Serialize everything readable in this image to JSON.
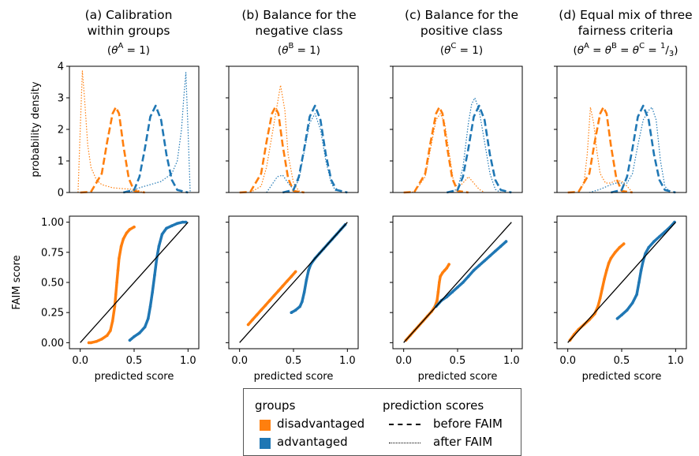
{
  "colors": {
    "disadvantaged": "#ff7f0e",
    "advantaged": "#1f77b4",
    "identity": "#000000"
  },
  "panel_titles": [
    {
      "line1": "(a) Calibration",
      "line2": "within groups",
      "line3": "(θA = 1)"
    },
    {
      "line1": "(b) Balance for the",
      "line2": "negative class",
      "line3": "(θB = 1)"
    },
    {
      "line1": "(c) Balance for the",
      "line2": "positive class",
      "line3": "(θC = 1)"
    },
    {
      "line1": "(d) Equal mix of three",
      "line2": "fairness criteria",
      "line3": "(θA = θB = θC = 1/3)"
    }
  ],
  "axes": {
    "top_ylabel": "probability density",
    "bottom_ylabel": "FAIM score",
    "xlabel": "predicted score",
    "top_yticks": [
      "0",
      "1",
      "2",
      "3",
      "4"
    ],
    "bottom_yticks": [
      "0.00",
      "0.25",
      "0.50",
      "0.75",
      "1.00"
    ],
    "xticks": [
      "0.0",
      "0.5",
      "1.0"
    ]
  },
  "legend": {
    "groups_title": "groups",
    "groups": [
      "disadvantaged",
      "advantaged"
    ],
    "scores_title": "prediction scores",
    "scores": [
      "before FAIM",
      "after FAIM"
    ]
  },
  "chart_data": [
    {
      "type": "line",
      "title": "(a) Calibration within groups (θA = 1)",
      "ylabel": "probability density",
      "xlim": [
        -0.1,
        1.1
      ],
      "ylim": [
        0,
        4
      ],
      "series": [
        {
          "name": "disadvantaged",
          "style": "before FAIM",
          "x": [
            0.0,
            0.1,
            0.2,
            0.25,
            0.3,
            0.33,
            0.36,
            0.4,
            0.45,
            0.5,
            0.6
          ],
          "y": [
            0.0,
            0.02,
            0.6,
            1.6,
            2.5,
            2.7,
            2.5,
            1.5,
            0.45,
            0.05,
            0.0
          ]
        },
        {
          "name": "disadvantaged",
          "style": "after FAIM",
          "x": [
            -0.02,
            0.0,
            0.02,
            0.04,
            0.07,
            0.1,
            0.15,
            0.2,
            0.3,
            0.4,
            0.5,
            0.55,
            0.58
          ],
          "y": [
            0.0,
            2.0,
            3.85,
            3.0,
            1.5,
            0.8,
            0.4,
            0.25,
            0.15,
            0.12,
            0.1,
            0.05,
            0.0
          ]
        },
        {
          "name": "advantaged",
          "style": "before FAIM",
          "x": [
            0.4,
            0.5,
            0.55,
            0.6,
            0.65,
            0.7,
            0.75,
            0.8,
            0.85,
            0.9,
            1.0
          ],
          "y": [
            0.0,
            0.08,
            0.5,
            1.4,
            2.4,
            2.75,
            2.3,
            1.2,
            0.4,
            0.08,
            0.0
          ]
        },
        {
          "name": "advantaged",
          "style": "after FAIM",
          "x": [
            0.45,
            0.55,
            0.65,
            0.75,
            0.85,
            0.9,
            0.94,
            0.96,
            0.98,
            1.0,
            1.02
          ],
          "y": [
            0.0,
            0.15,
            0.25,
            0.35,
            0.6,
            1.0,
            2.0,
            3.0,
            3.8,
            2.0,
            0.0
          ]
        }
      ]
    },
    {
      "type": "line",
      "title": "(b) Balance for the negative class (θB = 1)",
      "xlim": [
        -0.1,
        1.1
      ],
      "ylim": [
        0,
        4
      ],
      "series": [
        {
          "name": "disadvantaged",
          "style": "before FAIM",
          "x": [
            0.0,
            0.1,
            0.2,
            0.25,
            0.3,
            0.33,
            0.36,
            0.4,
            0.45,
            0.5,
            0.6
          ],
          "y": [
            0.0,
            0.02,
            0.6,
            1.6,
            2.5,
            2.7,
            2.5,
            1.5,
            0.45,
            0.05,
            0.0
          ]
        },
        {
          "name": "disadvantaged",
          "style": "after FAIM",
          "x": [
            0.1,
            0.2,
            0.25,
            0.3,
            0.35,
            0.38,
            0.42,
            0.45,
            0.5,
            0.55,
            0.6
          ],
          "y": [
            0.0,
            0.2,
            0.8,
            1.8,
            2.8,
            3.4,
            2.6,
            1.2,
            0.3,
            0.05,
            0.0
          ]
        },
        {
          "name": "advantaged",
          "style": "before FAIM",
          "x": [
            0.4,
            0.5,
            0.55,
            0.6,
            0.65,
            0.7,
            0.75,
            0.8,
            0.85,
            0.9,
            1.0
          ],
          "y": [
            0.0,
            0.08,
            0.5,
            1.4,
            2.4,
            2.75,
            2.3,
            1.2,
            0.4,
            0.08,
            0.0
          ]
        },
        {
          "name": "advantaged",
          "style": "after FAIM",
          "x": [
            0.25,
            0.3,
            0.35,
            0.4,
            0.45,
            0.5,
            0.55,
            0.6,
            0.65,
            0.7,
            0.75,
            0.8,
            0.85,
            0.9
          ],
          "y": [
            0.0,
            0.25,
            0.5,
            0.55,
            0.3,
            0.1,
            0.4,
            1.3,
            2.2,
            2.5,
            2.0,
            1.0,
            0.3,
            0.0
          ]
        }
      ]
    },
    {
      "type": "line",
      "title": "(c) Balance for the positive class (θC = 1)",
      "xlim": [
        -0.1,
        1.1
      ],
      "ylim": [
        0,
        4
      ],
      "series": [
        {
          "name": "disadvantaged",
          "style": "before FAIM",
          "x": [
            0.0,
            0.1,
            0.2,
            0.25,
            0.3,
            0.33,
            0.36,
            0.4,
            0.45,
            0.5,
            0.6
          ],
          "y": [
            0.0,
            0.02,
            0.6,
            1.6,
            2.5,
            2.7,
            2.5,
            1.5,
            0.45,
            0.05,
            0.0
          ]
        },
        {
          "name": "disadvantaged",
          "style": "after FAIM",
          "x": [
            0.0,
            0.1,
            0.2,
            0.25,
            0.3,
            0.34,
            0.38,
            0.42,
            0.46,
            0.5,
            0.55,
            0.6,
            0.65,
            0.7,
            0.75
          ],
          "y": [
            0.0,
            0.02,
            0.5,
            1.4,
            2.3,
            2.5,
            2.2,
            1.3,
            0.4,
            0.15,
            0.3,
            0.5,
            0.3,
            0.1,
            0.0
          ]
        },
        {
          "name": "advantaged",
          "style": "before FAIM",
          "x": [
            0.4,
            0.5,
            0.55,
            0.6,
            0.65,
            0.7,
            0.75,
            0.8,
            0.85,
            0.9,
            1.0
          ],
          "y": [
            0.0,
            0.08,
            0.5,
            1.4,
            2.4,
            2.75,
            2.3,
            1.2,
            0.4,
            0.08,
            0.0
          ]
        },
        {
          "name": "advantaged",
          "style": "after FAIM",
          "x": [
            0.4,
            0.5,
            0.55,
            0.6,
            0.63,
            0.66,
            0.7,
            0.75,
            0.8,
            0.85,
            0.9
          ],
          "y": [
            0.0,
            0.1,
            0.8,
            2.2,
            2.8,
            3.0,
            2.6,
            1.6,
            0.6,
            0.1,
            0.0
          ]
        }
      ]
    },
    {
      "type": "line",
      "title": "(d) Equal mix of three fairness criteria (θA = θB = θC = 1/3)",
      "xlim": [
        -0.1,
        1.1
      ],
      "ylim": [
        0,
        4
      ],
      "series": [
        {
          "name": "disadvantaged",
          "style": "before FAIM",
          "x": [
            0.0,
            0.1,
            0.2,
            0.25,
            0.3,
            0.33,
            0.36,
            0.4,
            0.45,
            0.5,
            0.6
          ],
          "y": [
            0.0,
            0.02,
            0.6,
            1.6,
            2.5,
            2.7,
            2.5,
            1.5,
            0.45,
            0.05,
            0.0
          ]
        },
        {
          "name": "disadvantaged",
          "style": "after FAIM",
          "x": [
            0.1,
            0.15,
            0.18,
            0.21,
            0.24,
            0.27,
            0.3,
            0.35,
            0.4,
            0.45,
            0.5,
            0.55,
            0.6
          ],
          "y": [
            0.0,
            0.3,
            1.2,
            2.7,
            2.2,
            1.3,
            0.6,
            0.3,
            0.3,
            0.4,
            0.35,
            0.2,
            0.0
          ]
        },
        {
          "name": "advantaged",
          "style": "before FAIM",
          "x": [
            0.4,
            0.5,
            0.55,
            0.6,
            0.65,
            0.7,
            0.75,
            0.8,
            0.85,
            0.9,
            1.0
          ],
          "y": [
            0.0,
            0.08,
            0.5,
            1.4,
            2.4,
            2.75,
            2.3,
            1.2,
            0.4,
            0.08,
            0.0
          ]
        },
        {
          "name": "advantaged",
          "style": "after FAIM",
          "x": [
            0.2,
            0.3,
            0.4,
            0.45,
            0.5,
            0.55,
            0.6,
            0.65,
            0.7,
            0.75,
            0.78,
            0.82,
            0.86,
            0.9,
            0.95
          ],
          "y": [
            0.0,
            0.1,
            0.25,
            0.3,
            0.3,
            0.3,
            0.6,
            1.5,
            2.3,
            2.6,
            2.7,
            2.3,
            1.0,
            0.2,
            0.0
          ]
        }
      ]
    },
    {
      "type": "scatter",
      "ylabel": "FAIM score",
      "xlabel": "predicted score",
      "xlim": [
        -0.1,
        1.1
      ],
      "ylim": [
        -0.05,
        1.05
      ],
      "identity_line": [
        [
          0,
          0
        ],
        [
          1,
          1
        ]
      ],
      "series": [
        {
          "name": "disadvantaged",
          "x": [
            0.08,
            0.1,
            0.15,
            0.2,
            0.25,
            0.28,
            0.3,
            0.32,
            0.33,
            0.34,
            0.35,
            0.36,
            0.38,
            0.4,
            0.43,
            0.46,
            0.5
          ],
          "y": [
            0.0,
            0.0,
            0.01,
            0.03,
            0.06,
            0.1,
            0.18,
            0.3,
            0.4,
            0.5,
            0.6,
            0.7,
            0.8,
            0.86,
            0.91,
            0.94,
            0.96
          ]
        },
        {
          "name": "advantaged",
          "x": [
            0.46,
            0.5,
            0.55,
            0.6,
            0.63,
            0.65,
            0.67,
            0.69,
            0.71,
            0.73,
            0.76,
            0.8,
            0.85,
            0.9,
            0.95,
            0.98
          ],
          "y": [
            0.02,
            0.05,
            0.08,
            0.13,
            0.2,
            0.3,
            0.42,
            0.56,
            0.7,
            0.8,
            0.9,
            0.95,
            0.97,
            0.99,
            1.0,
            1.0
          ]
        }
      ]
    },
    {
      "type": "scatter",
      "xlabel": "predicted score",
      "xlim": [
        -0.1,
        1.1
      ],
      "ylim": [
        -0.05,
        1.05
      ],
      "identity_line": [
        [
          0,
          0
        ],
        [
          1,
          1
        ]
      ],
      "series": [
        {
          "name": "disadvantaged",
          "x": [
            0.08,
            0.12,
            0.16,
            0.2,
            0.24,
            0.28,
            0.32,
            0.36,
            0.4,
            0.44,
            0.48,
            0.52
          ],
          "y": [
            0.15,
            0.19,
            0.23,
            0.27,
            0.31,
            0.35,
            0.39,
            0.43,
            0.47,
            0.51,
            0.55,
            0.59
          ]
        },
        {
          "name": "advantaged",
          "x": [
            0.48,
            0.52,
            0.56,
            0.58,
            0.6,
            0.62,
            0.64,
            0.66,
            0.7,
            0.74,
            0.78,
            0.82,
            0.86,
            0.9,
            0.94,
            0.98
          ],
          "y": [
            0.25,
            0.27,
            0.3,
            0.34,
            0.42,
            0.52,
            0.6,
            0.65,
            0.7,
            0.74,
            0.78,
            0.82,
            0.86,
            0.9,
            0.94,
            0.98
          ]
        }
      ]
    },
    {
      "type": "scatter",
      "xlabel": "predicted score",
      "xlim": [
        -0.1,
        1.1
      ],
      "ylim": [
        -0.05,
        1.05
      ],
      "identity_line": [
        [
          0,
          0
        ],
        [
          1,
          1
        ]
      ],
      "series": [
        {
          "name": "disadvantaged",
          "x": [
            0.02,
            0.06,
            0.1,
            0.14,
            0.18,
            0.22,
            0.26,
            0.29,
            0.31,
            0.32,
            0.33,
            0.34,
            0.36,
            0.38,
            0.4,
            0.42
          ],
          "y": [
            0.02,
            0.06,
            0.1,
            0.14,
            0.18,
            0.22,
            0.26,
            0.3,
            0.35,
            0.42,
            0.5,
            0.55,
            0.58,
            0.6,
            0.62,
            0.65
          ]
        },
        {
          "name": "advantaged",
          "x": [
            0.3,
            0.35,
            0.4,
            0.45,
            0.5,
            0.55,
            0.6,
            0.65,
            0.7,
            0.75,
            0.8,
            0.85,
            0.9,
            0.95
          ],
          "y": [
            0.3,
            0.35,
            0.38,
            0.42,
            0.46,
            0.5,
            0.55,
            0.6,
            0.64,
            0.68,
            0.72,
            0.76,
            0.8,
            0.84
          ]
        }
      ]
    },
    {
      "type": "scatter",
      "xlabel": "predicted score",
      "xlim": [
        -0.1,
        1.1
      ],
      "ylim": [
        -0.05,
        1.05
      ],
      "identity_line": [
        [
          0,
          0
        ],
        [
          1,
          1
        ]
      ],
      "series": [
        {
          "name": "disadvantaged",
          "x": [
            0.02,
            0.06,
            0.1,
            0.15,
            0.2,
            0.25,
            0.28,
            0.3,
            0.32,
            0.34,
            0.36,
            0.38,
            0.4,
            0.44,
            0.48,
            0.52
          ],
          "y": [
            0.02,
            0.07,
            0.11,
            0.15,
            0.19,
            0.24,
            0.3,
            0.37,
            0.45,
            0.53,
            0.6,
            0.66,
            0.7,
            0.75,
            0.79,
            0.82
          ]
        },
        {
          "name": "advantaged",
          "x": [
            0.46,
            0.5,
            0.55,
            0.6,
            0.64,
            0.66,
            0.68,
            0.7,
            0.72,
            0.75,
            0.8,
            0.85,
            0.9,
            0.95,
            0.99
          ],
          "y": [
            0.2,
            0.23,
            0.27,
            0.33,
            0.4,
            0.5,
            0.6,
            0.68,
            0.74,
            0.79,
            0.84,
            0.88,
            0.92,
            0.96,
            1.0
          ]
        }
      ]
    }
  ]
}
